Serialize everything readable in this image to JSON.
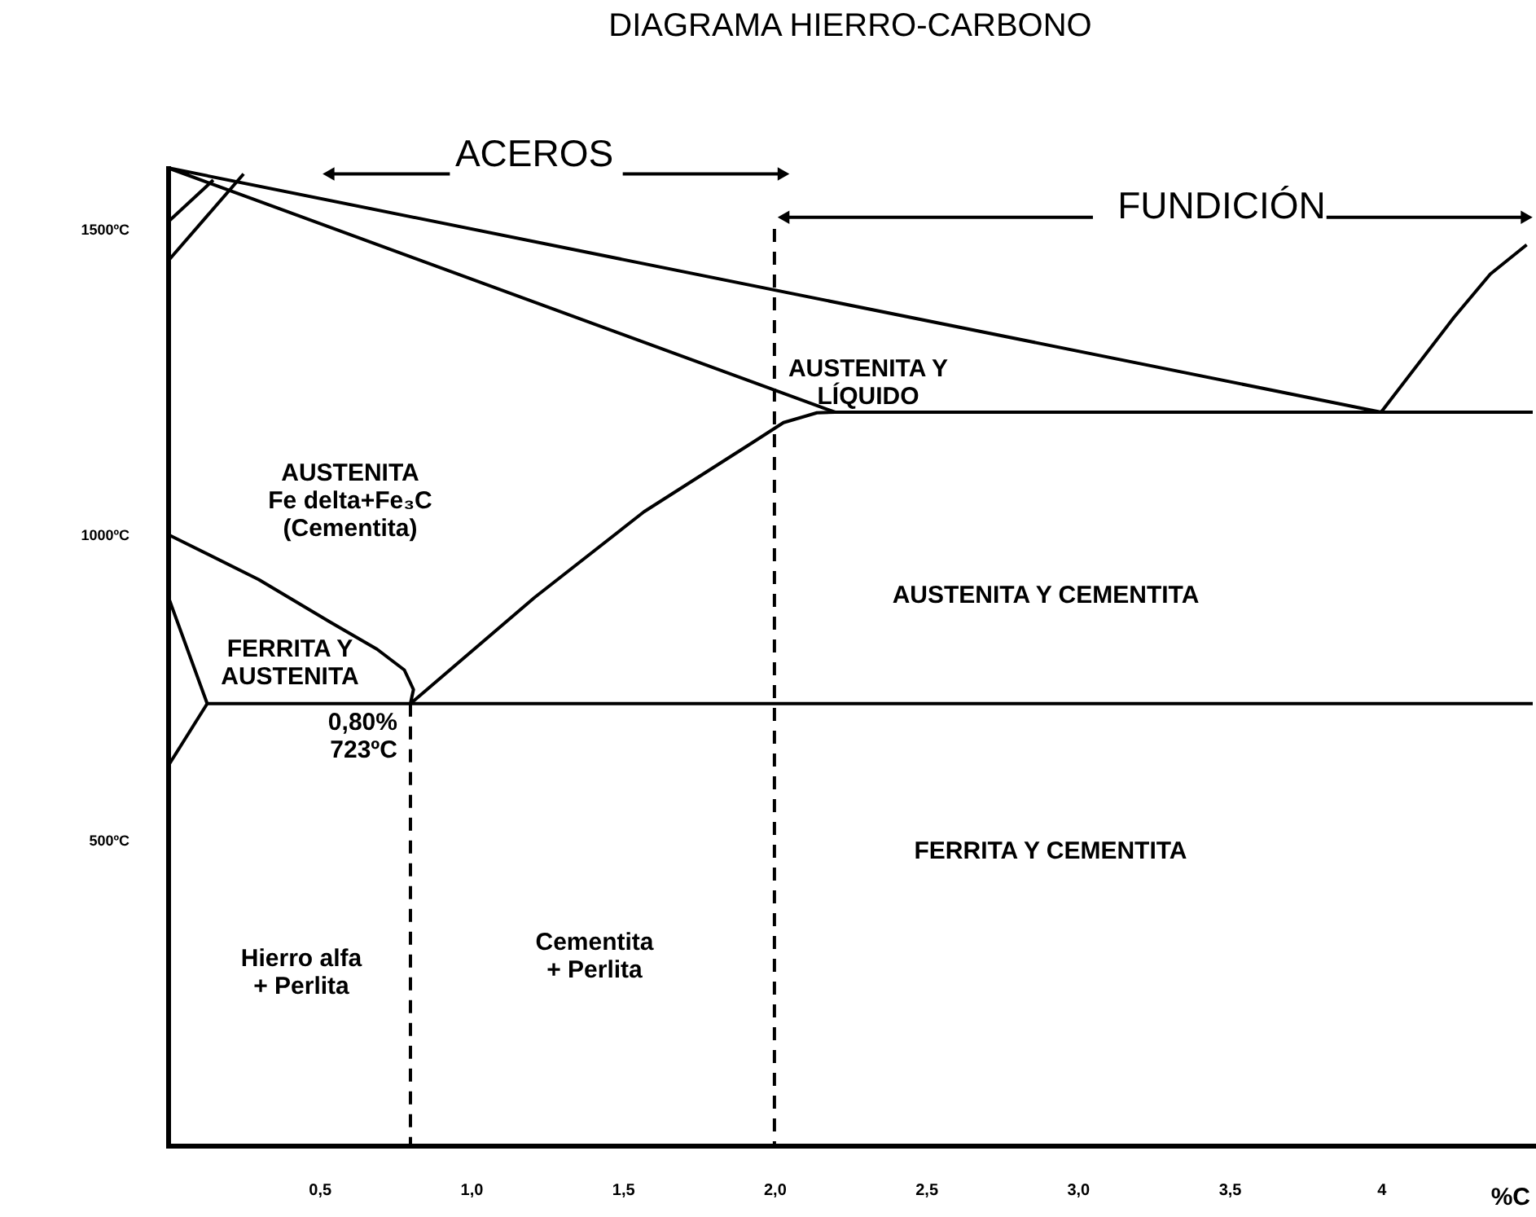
{
  "chart_data": {
    "type": "line",
    "title": "DIAGRAMA HIERRO-CARBONO",
    "xlabel": "%C",
    "xlim": [
      0,
      4.5
    ],
    "ylim": [
      0,
      1600
    ],
    "xticks": [
      {
        "value": 0.5,
        "label": "0,5"
      },
      {
        "value": 1.0,
        "label": "1,0"
      },
      {
        "value": 1.5,
        "label": "1,5"
      },
      {
        "value": 2.0,
        "label": "2,0"
      },
      {
        "value": 2.5,
        "label": "2,5"
      },
      {
        "value": 3.0,
        "label": "3,0"
      },
      {
        "value": 3.5,
        "label": "3,5"
      },
      {
        "value": 4,
        "label": "4"
      }
    ],
    "yticks": [
      {
        "value": 500,
        "label": "500ºC"
      },
      {
        "value": 1000,
        "label": "1000ºC"
      },
      {
        "value": 1500,
        "label": "1500ºC"
      }
    ],
    "grid": false,
    "series": [
      {
        "color": "#000000",
        "x": [
          2.2,
          0,
          4.0,
          4.24,
          4.36,
          4.48
        ],
        "values": [
          1200,
          1600,
          1200,
          1355,
          1426,
          1474
        ]
      },
      {
        "color": "#000000",
        "x": [
          0,
          0.3,
          0.53,
          0.69,
          0.78,
          0.81,
          0.8,
          1.21,
          1.57,
          1.93,
          2.03,
          2.14,
          2.2,
          4.5
        ],
        "values": [
          1000,
          926,
          858,
          812,
          778,
          746,
          723,
          897,
          1037,
          1151,
          1183,
          1199,
          1200,
          1200
        ]
      },
      {
        "color": "#000000",
        "x": [
          0,
          0.13,
          4.5
        ],
        "values": [
          900,
          723,
          723
        ]
      },
      {
        "color": "#000000",
        "x": [
          0,
          0.13
        ],
        "values": [
          620,
          723
        ]
      },
      {
        "color": "#000000",
        "x": [
          0,
          0.15
        ],
        "values": [
          1511,
          1580
        ]
      },
      {
        "color": "#000000",
        "x": [
          0,
          0.25
        ],
        "values": [
          1447,
          1590
        ]
      },
      {
        "color": "#000000",
        "x": [
          0.8,
          0.8
        ],
        "values": [
          723,
          0
        ],
        "line_style": "dashed"
      },
      {
        "color": "#000000",
        "x": [
          2.0,
          2.0
        ],
        "values": [
          1500,
          0
        ],
        "line_style": "dashed"
      },
      {
        "color": "#000000",
        "x": [
          0.53,
          0.93,
          1.2,
          1.5,
          2.03
        ],
        "values": [
          1590,
          1590,
          null,
          1590,
          1590
        ],
        "marker": "triangle"
      },
      {
        "color": "#000000",
        "x": [
          2.03,
          3.05,
          3.4,
          3.82,
          4.48
        ],
        "values": [
          1519,
          1519,
          null,
          1519,
          1519
        ],
        "marker": "triangle"
      }
    ],
    "annotations": [
      "ACEROS",
      "FUNDICIÓN",
      "AUSTENITA  Y\nLÍQUIDO",
      "AUSTENITA\nFe delta+Fe₃C\n(Cementita)",
      "FERRITA Y\nAUSTENITA",
      {
        "text": "0,80%\n723ºC",
        "x": 0.8,
        "y": 723
      },
      "AUSTENITA Y CEMENTITA",
      "FERRITA Y CEMENTITA",
      "Hierro alfa\n+ Perlita",
      "Cementita\n+ Perlita"
    ]
  }
}
